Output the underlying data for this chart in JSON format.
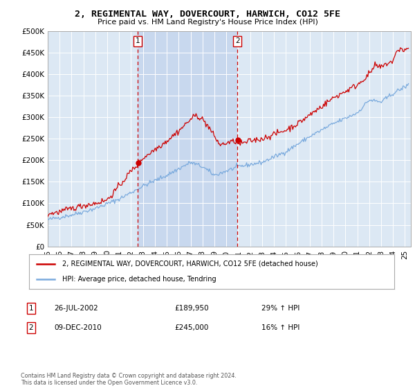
{
  "title": "2, REGIMENTAL WAY, DOVERCOURT, HARWICH, CO12 5FE",
  "subtitle": "Price paid vs. HM Land Registry's House Price Index (HPI)",
  "plot_bg_color": "#dce8f4",
  "shade_color": "#c8d8ee",
  "ylim": [
    0,
    500000
  ],
  "yticks": [
    0,
    50000,
    100000,
    150000,
    200000,
    250000,
    300000,
    350000,
    400000,
    450000,
    500000
  ],
  "ytick_labels": [
    "£0",
    "£50K",
    "£100K",
    "£150K",
    "£200K",
    "£250K",
    "£300K",
    "£350K",
    "£400K",
    "£450K",
    "£500K"
  ],
  "xmin_year": 1995,
  "xmax_year": 2025.5,
  "xtick_years": [
    1995,
    1996,
    1997,
    1998,
    1999,
    2000,
    2001,
    2002,
    2003,
    2004,
    2005,
    2006,
    2007,
    2008,
    2009,
    2010,
    2011,
    2012,
    2013,
    2014,
    2015,
    2016,
    2017,
    2018,
    2019,
    2020,
    2021,
    2022,
    2023,
    2024,
    2025
  ],
  "sale1_date": 2002.56,
  "sale1_price": 189950,
  "sale1_label": "1",
  "sale2_date": 2010.94,
  "sale2_price": 245000,
  "sale2_label": "2",
  "legend_line1": "2, REGIMENTAL WAY, DOVERCOURT, HARWICH, CO12 5FE (detached house)",
  "legend_line2": "HPI: Average price, detached house, Tendring",
  "annot1_date": "26-JUL-2002",
  "annot1_price": "£189,950",
  "annot1_hpi": "29% ↑ HPI",
  "annot2_date": "09-DEC-2010",
  "annot2_price": "£245,000",
  "annot2_hpi": "16% ↑ HPI",
  "copyright_text": "Contains HM Land Registry data © Crown copyright and database right 2024.\nThis data is licensed under the Open Government Licence v3.0.",
  "line_red_color": "#cc0000",
  "line_blue_color": "#7aaadd",
  "vline_color": "#cc0000",
  "box_color": "#cc0000",
  "dot_color": "#cc0000"
}
